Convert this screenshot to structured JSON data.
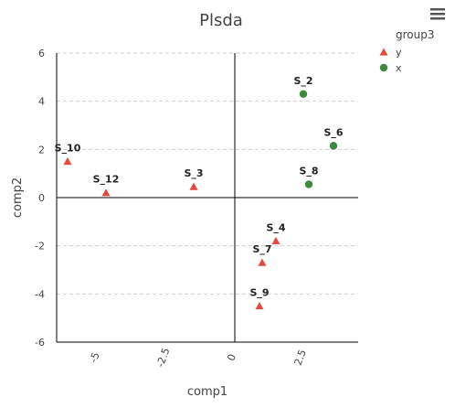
{
  "chart_data": {
    "type": "scatter",
    "title": "Plsda",
    "xlabel": "comp1",
    "ylabel": "comp2",
    "xlim": [
      -6.5,
      4.5
    ],
    "ylim": [
      -6,
      6
    ],
    "x_ticks": [
      {
        "value": -5,
        "label": "-5"
      },
      {
        "value": -2.5,
        "label": "-2.5"
      },
      {
        "value": 0,
        "label": "0"
      },
      {
        "value": 2.5,
        "label": "2.5"
      }
    ],
    "y_ticks": [
      {
        "value": 6,
        "label": "6"
      },
      {
        "value": 4,
        "label": "4"
      },
      {
        "value": 2,
        "label": "2"
      },
      {
        "value": 0,
        "label": "0"
      },
      {
        "value": -2,
        "label": "-2"
      },
      {
        "value": -4,
        "label": "-4"
      },
      {
        "value": -6,
        "label": "-6"
      }
    ],
    "grid": "horizontal dashed",
    "legend": {
      "title": "group3",
      "placement": "top-right",
      "entries": [
        {
          "label": "y",
          "color": "#e8473b",
          "marker": "triangle"
        },
        {
          "label": "x",
          "color": "#3b8a3b",
          "marker": "circle"
        }
      ]
    },
    "series": [
      {
        "name": "y",
        "color": "#e8473b",
        "marker": "triangle",
        "points": [
          {
            "label": "S_10",
            "x": -6.1,
            "y": 1.5
          },
          {
            "label": "S_12",
            "x": -4.7,
            "y": 0.2
          },
          {
            "label": "S_3",
            "x": -1.5,
            "y": 0.45
          },
          {
            "label": "S_4",
            "x": 1.5,
            "y": -1.8
          },
          {
            "label": "S_7",
            "x": 1.0,
            "y": -2.7
          },
          {
            "label": "S_9",
            "x": 0.9,
            "y": -4.5
          }
        ]
      },
      {
        "name": "x",
        "color": "#3b8a3b",
        "marker": "circle",
        "points": [
          {
            "label": "S_2",
            "x": 2.5,
            "y": 4.3
          },
          {
            "label": "S_6",
            "x": 3.6,
            "y": 2.15
          },
          {
            "label": "S_8",
            "x": 2.7,
            "y": 0.55
          }
        ]
      }
    ]
  },
  "toolbar": {
    "menu_icon": "hamburger-menu-icon"
  }
}
